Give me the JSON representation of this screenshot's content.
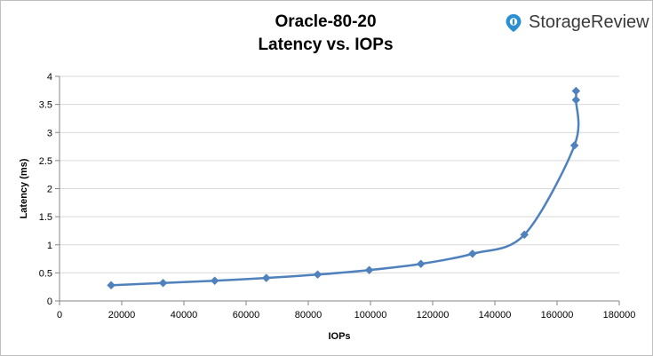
{
  "chart_data": {
    "type": "line",
    "title": "Oracle-80-20",
    "subtitle": "Latency vs. IOPs",
    "xlabel": "IOPs",
    "ylabel": "Latency (ms)",
    "xlim": [
      0,
      180000
    ],
    "ylim": [
      0,
      4
    ],
    "x_ticks": [
      0,
      20000,
      40000,
      60000,
      80000,
      100000,
      120000,
      140000,
      160000,
      180000
    ],
    "y_ticks": [
      0,
      0.5,
      1,
      1.5,
      2,
      2.5,
      3,
      3.5,
      4
    ],
    "grid": "horizontal",
    "legend": "none",
    "series": [
      {
        "color": "#4f81bd",
        "marker": "diamond",
        "smooth": true,
        "x": [
          16600,
          33300,
          49900,
          66500,
          83000,
          99600,
          116200,
          132800,
          149500,
          165600,
          166100,
          166100
        ],
        "y": [
          0.28,
          0.32,
          0.36,
          0.41,
          0.47,
          0.55,
          0.66,
          0.84,
          1.18,
          2.77,
          3.58,
          3.74
        ]
      }
    ]
  },
  "brand": {
    "name": "StorageReview",
    "icon": "storagereview-logo-icon",
    "color": "#2b8fd1"
  }
}
